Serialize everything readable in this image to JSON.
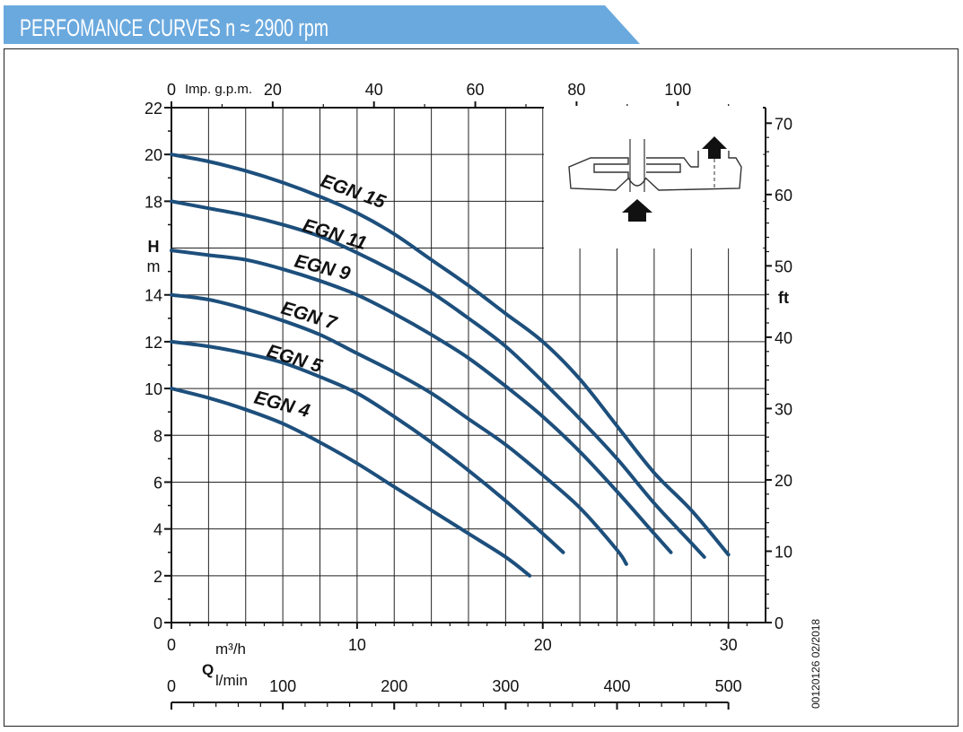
{
  "header": {
    "title": "PERFOMANCE CURVES n ≈ 2900 rpm",
    "bg_color": "#6aa9de",
    "text_color": "#ffffff"
  },
  "chart_data": {
    "type": "line",
    "curve_color": "#1d4f7c",
    "x_axis": {
      "label": "m³/h",
      "range": [
        0,
        32
      ],
      "ticks": [
        0,
        10,
        20,
        30
      ]
    },
    "y_axis": {
      "label_top": "H",
      "label_bottom": "m",
      "range": [
        0,
        22
      ],
      "ticks": [
        0,
        2,
        4,
        6,
        8,
        10,
        12,
        14,
        18,
        20,
        22
      ]
    },
    "right_axis": {
      "label": "ft",
      "ticks": [
        0,
        10,
        20,
        30,
        40,
        50,
        60,
        70
      ]
    },
    "top_axis": {
      "label": "Imp. g.p.m.",
      "ticks": [
        0,
        20,
        40,
        60,
        80,
        100
      ]
    },
    "bottom_axis": {
      "symbol": "Q",
      "label": "l/min",
      "ticks": [
        0,
        100,
        200,
        300,
        400,
        500
      ]
    },
    "series": [
      {
        "name": "EGN 4",
        "x": [
          0,
          2,
          4,
          6,
          8,
          10,
          12,
          14,
          16,
          18,
          19.3
        ],
        "y": [
          10,
          9.6,
          9.1,
          8.5,
          7.7,
          6.8,
          5.8,
          4.8,
          3.8,
          2.8,
          2
        ]
      },
      {
        "name": "EGN 5",
        "x": [
          0,
          2,
          4,
          6,
          8,
          10,
          12,
          14,
          16,
          18,
          20,
          21.1
        ],
        "y": [
          12,
          11.8,
          11.5,
          11.1,
          10.5,
          9.8,
          8.8,
          7.7,
          6.5,
          5.2,
          3.8,
          3
        ]
      },
      {
        "name": "EGN 7",
        "x": [
          0,
          2,
          4,
          6,
          8,
          10,
          12,
          14,
          16,
          18,
          20,
          22,
          24,
          24.5
        ],
        "y": [
          14,
          13.8,
          13.4,
          12.9,
          12.3,
          11.5,
          10.7,
          9.8,
          8.7,
          7.6,
          6.3,
          4.9,
          3.1,
          2.5
        ]
      },
      {
        "name": "EGN 9",
        "x": [
          0,
          2,
          4,
          6,
          8,
          10,
          12,
          14,
          16,
          18,
          20,
          22,
          24,
          26,
          26.9
        ],
        "y": [
          15.9,
          15.7,
          15.5,
          15.1,
          14.6,
          14,
          13.2,
          12.3,
          11.3,
          10.1,
          8.8,
          7.3,
          5.6,
          3.8,
          3
        ]
      },
      {
        "name": "EGN 11",
        "x": [
          0,
          2,
          4,
          6,
          8,
          10,
          12,
          14,
          16,
          18,
          20,
          22,
          24,
          26,
          28,
          28.7
        ],
        "y": [
          18,
          17.7,
          17.4,
          17,
          16.5,
          15.8,
          15,
          14.1,
          13,
          11.8,
          10.3,
          8.7,
          7,
          5.1,
          3.4,
          2.8
        ]
      },
      {
        "name": "EGN 15",
        "x": [
          0,
          2,
          4,
          6,
          8,
          10,
          12,
          14,
          16,
          18,
          20,
          22,
          24,
          26,
          28,
          30
        ],
        "y": [
          20,
          19.7,
          19.3,
          18.8,
          18.2,
          17.5,
          16.6,
          15.5,
          14.4,
          13.2,
          12,
          10.4,
          8.4,
          6.4,
          4.8,
          2.9
        ]
      }
    ]
  },
  "side_note": "00120126 02/2018"
}
